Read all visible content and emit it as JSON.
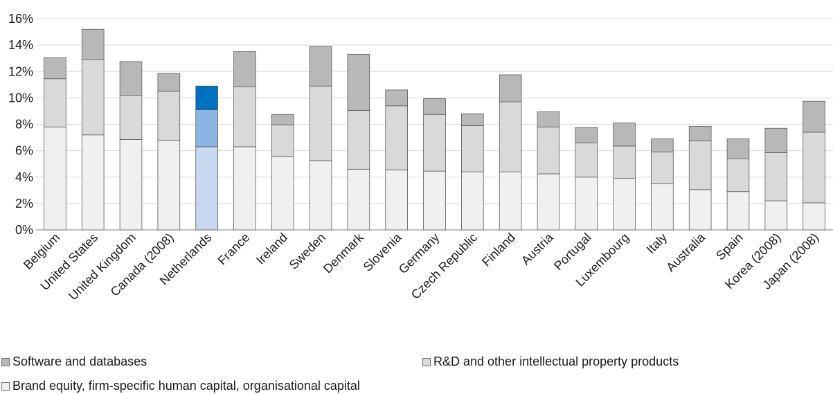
{
  "chart_data": {
    "type": "bar",
    "stacked": true,
    "categories": [
      "Belgium",
      "United States",
      "United Kingdom",
      "Canada (2008)",
      "Netherlands",
      "France",
      "Ireland",
      "Sweden",
      "Denmark",
      "Slovenia",
      "Germany",
      "Czech Republic",
      "Finland",
      "Austria",
      "Portugal",
      "Luxembourg",
      "Italy",
      "Australia",
      "Spain",
      "Korea (2008)",
      "Japan (2008)"
    ],
    "series": [
      {
        "name": "Brand equity, firm-specific human capital, organisational capital",
        "values": [
          7.8,
          7.2,
          6.85,
          6.8,
          6.3,
          6.3,
          5.55,
          5.25,
          4.6,
          4.55,
          4.45,
          4.4,
          4.4,
          4.25,
          4.0,
          3.9,
          3.5,
          3.05,
          2.9,
          2.2,
          2.05
        ]
      },
      {
        "name": "R&D and other intellectual property products",
        "values": [
          3.65,
          5.7,
          3.35,
          3.7,
          2.8,
          4.55,
          2.4,
          5.65,
          4.45,
          4.85,
          4.3,
          3.5,
          5.3,
          3.55,
          2.6,
          2.45,
          2.4,
          3.7,
          2.5,
          3.65,
          5.35
        ]
      },
      {
        "name": "Software and databases",
        "values": [
          1.6,
          2.3,
          2.55,
          1.35,
          1.8,
          2.65,
          0.8,
          3.0,
          4.25,
          1.2,
          1.2,
          0.9,
          2.05,
          1.15,
          1.15,
          1.75,
          1.0,
          1.1,
          1.5,
          1.85,
          2.35
        ]
      }
    ],
    "colors": {
      "brand": "#f0f0f0",
      "rd": "#d9d9d9",
      "software": "#b8b8b8",
      "highlight_brand": "#c6d9f1",
      "highlight_rd": "#8eb4e3",
      "highlight_software": "#0070c0",
      "outline": "#595959",
      "grid": "#d9d9d9"
    },
    "highlight_category": "Netherlands",
    "ylim": [
      0,
      16
    ],
    "ytick_labels": [
      "0%",
      "2%",
      "4%",
      "6%",
      "8%",
      "10%",
      "12%",
      "14%",
      "16%"
    ],
    "grid": true,
    "legend_position": "bottom"
  },
  "legend": {
    "software": "Software and databases",
    "rd": "R&D and other intellectual property products",
    "brand": "Brand equity, firm-specific human capital, organisational capital"
  }
}
